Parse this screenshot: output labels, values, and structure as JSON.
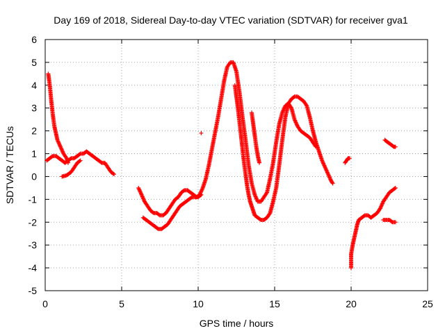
{
  "chart_data": {
    "type": "scatter",
    "title": "Day 169 of 2018, Sidereal Day-to-day VTEC variation (SDTVAR) for receiver gva1",
    "xlabel": "GPS time / hours",
    "ylabel": "SDTVAR / TECUs",
    "xlim": [
      0,
      25
    ],
    "ylim": [
      -5,
      6
    ],
    "xticks": [
      "0",
      "5",
      "10",
      "15",
      "20",
      "25"
    ],
    "yticks": [
      "-5",
      "-4",
      "-3",
      "-2",
      "-1",
      "0",
      "1",
      "2",
      "3",
      "4",
      "5",
      "6"
    ],
    "grid": true,
    "marker": "+",
    "series": [
      {
        "name": "gva1",
        "color": "#ff0000",
        "segments": [
          [
            [
              0.1,
              0.7
            ],
            [
              0.3,
              0.8
            ],
            [
              0.5,
              0.9
            ],
            [
              0.7,
              0.9
            ],
            [
              0.9,
              0.8
            ],
            [
              1.1,
              0.7
            ],
            [
              1.3,
              0.6
            ],
            [
              1.5,
              0.7
            ],
            [
              1.7,
              0.8
            ],
            [
              1.9,
              0.8
            ],
            [
              2.1,
              0.9
            ],
            [
              2.3,
              1.0
            ],
            [
              2.5,
              1.0
            ],
            [
              2.7,
              1.1
            ],
            [
              2.9,
              1.0
            ],
            [
              3.1,
              0.9
            ],
            [
              3.3,
              0.8
            ],
            [
              3.5,
              0.7
            ],
            [
              3.7,
              0.6
            ],
            [
              3.9,
              0.6
            ],
            [
              4.1,
              0.4
            ],
            [
              4.3,
              0.2
            ],
            [
              4.5,
              0.1
            ]
          ],
          [
            [
              0.2,
              4.5
            ],
            [
              0.3,
              4.0
            ],
            [
              0.4,
              3.3
            ],
            [
              0.5,
              2.7
            ],
            [
              0.6,
              2.2
            ],
            [
              0.7,
              1.9
            ],
            [
              0.8,
              1.6
            ],
            [
              1.0,
              1.3
            ],
            [
              1.2,
              1.0
            ],
            [
              1.4,
              0.8
            ],
            [
              1.5,
              0.6
            ]
          ],
          [
            [
              1.1,
              0.0
            ],
            [
              1.4,
              0.05
            ],
            [
              1.7,
              0.2
            ],
            [
              1.9,
              0.4
            ],
            [
              2.1,
              0.6
            ],
            [
              2.3,
              0.7
            ]
          ],
          [
            [
              6.1,
              -0.5
            ],
            [
              6.3,
              -0.8
            ],
            [
              6.5,
              -1.1
            ],
            [
              6.7,
              -1.3
            ],
            [
              6.9,
              -1.5
            ],
            [
              7.1,
              -1.6
            ],
            [
              7.3,
              -1.6
            ],
            [
              7.5,
              -1.7
            ],
            [
              7.7,
              -1.7
            ],
            [
              7.9,
              -1.6
            ],
            [
              8.1,
              -1.4
            ],
            [
              8.3,
              -1.2
            ],
            [
              8.5,
              -1.0
            ],
            [
              8.7,
              -0.9
            ],
            [
              8.9,
              -0.7
            ],
            [
              9.1,
              -0.6
            ],
            [
              9.3,
              -0.6
            ],
            [
              9.5,
              -0.7
            ],
            [
              9.7,
              -0.8
            ],
            [
              9.9,
              -0.9
            ],
            [
              10.1,
              -0.8
            ],
            [
              10.3,
              -0.5
            ],
            [
              10.5,
              -0.1
            ],
            [
              10.7,
              0.5
            ],
            [
              10.9,
              1.2
            ],
            [
              11.1,
              1.9
            ],
            [
              11.3,
              2.6
            ],
            [
              11.5,
              3.4
            ],
            [
              11.7,
              4.2
            ],
            [
              11.9,
              4.8
            ],
            [
              12.1,
              5.0
            ],
            [
              12.3,
              5.0
            ],
            [
              12.5,
              4.6
            ],
            [
              12.7,
              3.7
            ],
            [
              12.9,
              2.6
            ],
            [
              13.1,
              1.6
            ],
            [
              13.3,
              0.5
            ],
            [
              13.5,
              -0.3
            ],
            [
              13.7,
              -0.8
            ],
            [
              13.9,
              -1.1
            ],
            [
              14.1,
              -1.1
            ],
            [
              14.3,
              -0.9
            ],
            [
              14.5,
              -0.7
            ],
            [
              14.7,
              -0.1
            ],
            [
              14.9,
              0.6
            ],
            [
              15.1,
              1.5
            ],
            [
              15.3,
              2.3
            ],
            [
              15.5,
              2.8
            ],
            [
              15.7,
              3.1
            ],
            [
              15.9,
              3.2
            ],
            [
              16.1,
              3.0
            ],
            [
              16.3,
              2.5
            ],
            [
              16.5,
              2.2
            ],
            [
              16.7,
              2.0
            ],
            [
              16.9,
              1.9
            ],
            [
              17.1,
              1.8
            ],
            [
              17.3,
              1.7
            ],
            [
              17.5,
              1.5
            ],
            [
              17.7,
              1.3
            ]
          ],
          [
            [
              6.4,
              -1.8
            ],
            [
              6.6,
              -1.9
            ],
            [
              6.8,
              -2.0
            ],
            [
              7.0,
              -2.1
            ],
            [
              7.2,
              -2.2
            ],
            [
              7.4,
              -2.3
            ],
            [
              7.6,
              -2.3
            ],
            [
              7.8,
              -2.2
            ],
            [
              8.0,
              -2.1
            ],
            [
              8.2,
              -1.9
            ],
            [
              8.4,
              -1.7
            ],
            [
              8.6,
              -1.5
            ],
            [
              8.8,
              -1.3
            ],
            [
              9.0,
              -1.2
            ],
            [
              9.2,
              -1.1
            ],
            [
              9.4,
              -1.0
            ],
            [
              9.6,
              -0.9
            ],
            [
              9.8,
              -0.9
            ],
            [
              10.0,
              -0.9
            ],
            [
              10.2,
              -0.8
            ]
          ],
          [
            [
              10.2,
              1.9
            ]
          ],
          [
            [
              12.4,
              4.0
            ],
            [
              12.5,
              3.5
            ],
            [
              12.6,
              3.0
            ],
            [
              12.7,
              2.4
            ],
            [
              12.8,
              1.8
            ],
            [
              12.9,
              1.2
            ],
            [
              13.0,
              0.6
            ],
            [
              13.1,
              0.1
            ],
            [
              13.2,
              -0.4
            ],
            [
              13.3,
              -0.8
            ],
            [
              13.4,
              -1.1
            ],
            [
              13.5,
              -1.3
            ],
            [
              13.6,
              -1.5
            ],
            [
              13.7,
              -1.7
            ],
            [
              13.9,
              -1.8
            ],
            [
              14.1,
              -1.9
            ],
            [
              14.3,
              -1.9
            ],
            [
              14.5,
              -1.8
            ],
            [
              14.7,
              -1.6
            ],
            [
              14.9,
              -1.1
            ],
            [
              15.1,
              -0.5
            ],
            [
              15.3,
              0.5
            ],
            [
              15.5,
              1.6
            ],
            [
              15.7,
              2.6
            ],
            [
              15.9,
              3.2
            ],
            [
              16.1,
              3.4
            ],
            [
              16.3,
              3.5
            ],
            [
              16.5,
              3.5
            ],
            [
              16.7,
              3.4
            ],
            [
              16.9,
              3.3
            ],
            [
              17.1,
              3.1
            ],
            [
              17.3,
              2.6
            ],
            [
              17.5,
              2.0
            ],
            [
              17.7,
              1.5
            ],
            [
              17.9,
              1.1
            ],
            [
              18.1,
              0.7
            ],
            [
              18.3,
              0.4
            ],
            [
              18.5,
              0.1
            ],
            [
              18.7,
              -0.2
            ],
            [
              18.8,
              -0.3
            ]
          ],
          [
            [
              13.5,
              2.8
            ],
            [
              13.6,
              2.3
            ],
            [
              13.7,
              1.8
            ],
            [
              13.8,
              1.3
            ],
            [
              13.9,
              0.9
            ],
            [
              14.0,
              0.6
            ]
          ],
          [
            [
              19.6,
              0.6
            ],
            [
              19.7,
              0.7
            ],
            [
              19.8,
              0.8
            ],
            [
              19.9,
              0.8
            ]
          ],
          [
            [
              20.0,
              -4.0
            ],
            [
              20.0,
              -3.4
            ],
            [
              20.1,
              -3.0
            ],
            [
              20.2,
              -2.7
            ],
            [
              20.3,
              -2.4
            ],
            [
              20.4,
              -2.1
            ],
            [
              20.5,
              -1.9
            ],
            [
              20.7,
              -1.8
            ],
            [
              20.9,
              -1.7
            ],
            [
              21.1,
              -1.7
            ],
            [
              21.3,
              -1.8
            ],
            [
              21.5,
              -1.7
            ],
            [
              21.7,
              -1.6
            ],
            [
              21.9,
              -1.4
            ],
            [
              22.1,
              -1.1
            ],
            [
              22.3,
              -0.9
            ],
            [
              22.5,
              -0.7
            ],
            [
              22.7,
              -0.6
            ],
            [
              22.9,
              -0.5
            ]
          ],
          [
            [
              22.1,
              -1.9
            ],
            [
              22.3,
              -1.9
            ],
            [
              22.5,
              -1.9
            ],
            [
              22.7,
              -2.0
            ],
            [
              22.9,
              -2.0
            ]
          ],
          [
            [
              22.2,
              1.6
            ],
            [
              22.4,
              1.5
            ],
            [
              22.6,
              1.4
            ],
            [
              22.8,
              1.3
            ],
            [
              22.9,
              1.3
            ]
          ]
        ]
      }
    ]
  }
}
